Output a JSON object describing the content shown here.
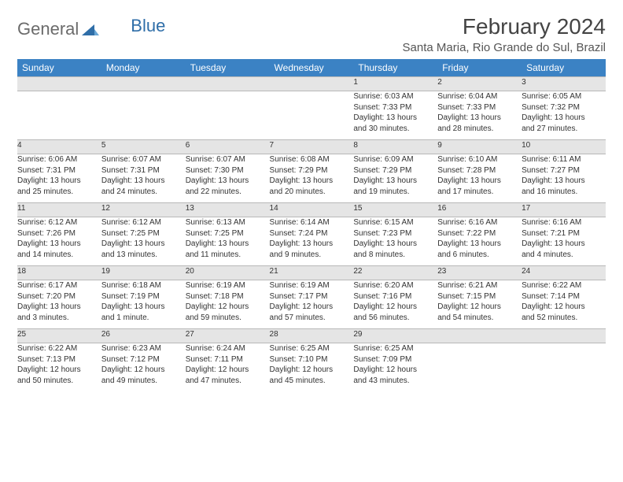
{
  "logo": {
    "word1": "General",
    "word2": "Blue"
  },
  "title": "February 2024",
  "location": "Santa Maria, Rio Grande do Sul, Brazil",
  "colors": {
    "header_blue": "#3b82c4",
    "row_gray": "#e5e5e5",
    "background": "#ffffff",
    "dark_text": "#333333"
  },
  "weekdays": [
    "Sunday",
    "Monday",
    "Tuesday",
    "Wednesday",
    "Thursday",
    "Friday",
    "Saturday"
  ],
  "weeks": [
    [
      null,
      null,
      null,
      null,
      {
        "n": "1",
        "sr": "6:03 AM",
        "ss": "7:33 PM",
        "d1": "Daylight: 13 hours",
        "d2": "and 30 minutes."
      },
      {
        "n": "2",
        "sr": "6:04 AM",
        "ss": "7:33 PM",
        "d1": "Daylight: 13 hours",
        "d2": "and 28 minutes."
      },
      {
        "n": "3",
        "sr": "6:05 AM",
        "ss": "7:32 PM",
        "d1": "Daylight: 13 hours",
        "d2": "and 27 minutes."
      }
    ],
    [
      {
        "n": "4",
        "sr": "6:06 AM",
        "ss": "7:31 PM",
        "d1": "Daylight: 13 hours",
        "d2": "and 25 minutes."
      },
      {
        "n": "5",
        "sr": "6:07 AM",
        "ss": "7:31 PM",
        "d1": "Daylight: 13 hours",
        "d2": "and 24 minutes."
      },
      {
        "n": "6",
        "sr": "6:07 AM",
        "ss": "7:30 PM",
        "d1": "Daylight: 13 hours",
        "d2": "and 22 minutes."
      },
      {
        "n": "7",
        "sr": "6:08 AM",
        "ss": "7:29 PM",
        "d1": "Daylight: 13 hours",
        "d2": "and 20 minutes."
      },
      {
        "n": "8",
        "sr": "6:09 AM",
        "ss": "7:29 PM",
        "d1": "Daylight: 13 hours",
        "d2": "and 19 minutes."
      },
      {
        "n": "9",
        "sr": "6:10 AM",
        "ss": "7:28 PM",
        "d1": "Daylight: 13 hours",
        "d2": "and 17 minutes."
      },
      {
        "n": "10",
        "sr": "6:11 AM",
        "ss": "7:27 PM",
        "d1": "Daylight: 13 hours",
        "d2": "and 16 minutes."
      }
    ],
    [
      {
        "n": "11",
        "sr": "6:12 AM",
        "ss": "7:26 PM",
        "d1": "Daylight: 13 hours",
        "d2": "and 14 minutes."
      },
      {
        "n": "12",
        "sr": "6:12 AM",
        "ss": "7:25 PM",
        "d1": "Daylight: 13 hours",
        "d2": "and 13 minutes."
      },
      {
        "n": "13",
        "sr": "6:13 AM",
        "ss": "7:25 PM",
        "d1": "Daylight: 13 hours",
        "d2": "and 11 minutes."
      },
      {
        "n": "14",
        "sr": "6:14 AM",
        "ss": "7:24 PM",
        "d1": "Daylight: 13 hours",
        "d2": "and 9 minutes."
      },
      {
        "n": "15",
        "sr": "6:15 AM",
        "ss": "7:23 PM",
        "d1": "Daylight: 13 hours",
        "d2": "and 8 minutes."
      },
      {
        "n": "16",
        "sr": "6:16 AM",
        "ss": "7:22 PM",
        "d1": "Daylight: 13 hours",
        "d2": "and 6 minutes."
      },
      {
        "n": "17",
        "sr": "6:16 AM",
        "ss": "7:21 PM",
        "d1": "Daylight: 13 hours",
        "d2": "and 4 minutes."
      }
    ],
    [
      {
        "n": "18",
        "sr": "6:17 AM",
        "ss": "7:20 PM",
        "d1": "Daylight: 13 hours",
        "d2": "and 3 minutes."
      },
      {
        "n": "19",
        "sr": "6:18 AM",
        "ss": "7:19 PM",
        "d1": "Daylight: 13 hours",
        "d2": "and 1 minute."
      },
      {
        "n": "20",
        "sr": "6:19 AM",
        "ss": "7:18 PM",
        "d1": "Daylight: 12 hours",
        "d2": "and 59 minutes."
      },
      {
        "n": "21",
        "sr": "6:19 AM",
        "ss": "7:17 PM",
        "d1": "Daylight: 12 hours",
        "d2": "and 57 minutes."
      },
      {
        "n": "22",
        "sr": "6:20 AM",
        "ss": "7:16 PM",
        "d1": "Daylight: 12 hours",
        "d2": "and 56 minutes."
      },
      {
        "n": "23",
        "sr": "6:21 AM",
        "ss": "7:15 PM",
        "d1": "Daylight: 12 hours",
        "d2": "and 54 minutes."
      },
      {
        "n": "24",
        "sr": "6:22 AM",
        "ss": "7:14 PM",
        "d1": "Daylight: 12 hours",
        "d2": "and 52 minutes."
      }
    ],
    [
      {
        "n": "25",
        "sr": "6:22 AM",
        "ss": "7:13 PM",
        "d1": "Daylight: 12 hours",
        "d2": "and 50 minutes."
      },
      {
        "n": "26",
        "sr": "6:23 AM",
        "ss": "7:12 PM",
        "d1": "Daylight: 12 hours",
        "d2": "and 49 minutes."
      },
      {
        "n": "27",
        "sr": "6:24 AM",
        "ss": "7:11 PM",
        "d1": "Daylight: 12 hours",
        "d2": "and 47 minutes."
      },
      {
        "n": "28",
        "sr": "6:25 AM",
        "ss": "7:10 PM",
        "d1": "Daylight: 12 hours",
        "d2": "and 45 minutes."
      },
      {
        "n": "29",
        "sr": "6:25 AM",
        "ss": "7:09 PM",
        "d1": "Daylight: 12 hours",
        "d2": "and 43 minutes."
      },
      null,
      null
    ]
  ],
  "labels": {
    "sunrise_prefix": "Sunrise: ",
    "sunset_prefix": "Sunset: "
  }
}
